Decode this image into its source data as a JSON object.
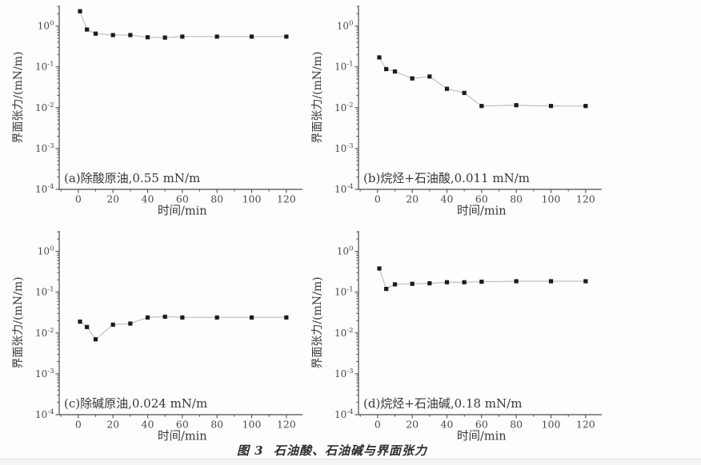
{
  "figure": {
    "caption": "图 3  石油酸、石油碱与界面张力"
  },
  "colors": {
    "marker": "#1b1b1b",
    "line": "#b5b5b5",
    "axis": "#4d4d4d",
    "text": "#383838",
    "tick_text": "#4a4a4a"
  },
  "chart_data": [
    {
      "id": "a",
      "type": "line",
      "label": "(a)除酸原油,0.55 mN/m",
      "xlabel": "时间/min",
      "ylabel": "界面张力/(mN/m)",
      "x": [
        1,
        5,
        10,
        20,
        30,
        40,
        50,
        60,
        80,
        100,
        120
      ],
      "y": [
        2.3,
        0.82,
        0.65,
        0.6,
        0.6,
        0.53,
        0.52,
        0.55,
        0.55,
        0.55,
        0.55
      ],
      "xlim": [
        -11,
        129.3
      ],
      "ylim_log": [
        -4,
        0.5
      ],
      "x_tick_labels": [
        0,
        20,
        40,
        60,
        80,
        100,
        120
      ],
      "y_tick_exponents": [
        0,
        -1,
        -2,
        -3,
        -4
      ],
      "grid": "off",
      "legend": "none"
    },
    {
      "id": "b",
      "type": "line",
      "label": "(b)烷烃+石油酸,0.011 mN/m",
      "xlabel": "时间/min",
      "ylabel": "界面张力/(mN/m)",
      "x": [
        1,
        5,
        10,
        20,
        30,
        40,
        50,
        60,
        80,
        100,
        120
      ],
      "y": [
        0.17,
        0.088,
        0.077,
        0.052,
        0.058,
        0.029,
        0.023,
        0.011,
        0.0115,
        0.011,
        0.011
      ],
      "xlim": [
        -11,
        129.3
      ],
      "ylim_log": [
        -4,
        0.5
      ],
      "x_tick_labels": [
        0,
        20,
        40,
        60,
        80,
        100,
        120
      ],
      "y_tick_exponents": [
        0,
        -1,
        -2,
        -3,
        -4
      ],
      "grid": "off",
      "legend": "none"
    },
    {
      "id": "c",
      "type": "line",
      "label": "(c)除碱原油,0.024 mN/m",
      "xlabel": "时间/min",
      "ylabel": "界面张力/(mN/m)",
      "x": [
        1,
        5,
        10,
        20,
        30,
        40,
        50,
        60,
        80,
        100,
        120
      ],
      "y": [
        0.019,
        0.014,
        0.007,
        0.016,
        0.017,
        0.024,
        0.025,
        0.024,
        0.024,
        0.024,
        0.024
      ],
      "xlim": [
        -11,
        129.3
      ],
      "ylim_log": [
        -4,
        0.5
      ],
      "x_tick_labels": [
        0,
        20,
        40,
        60,
        80,
        100,
        120
      ],
      "y_tick_exponents": [
        0,
        -1,
        -2,
        -3,
        -4
      ],
      "grid": "off",
      "legend": "none"
    },
    {
      "id": "d",
      "type": "line",
      "label": "(d)烷烃+石油碱,0.18 mN/m",
      "xlabel": "时间/min",
      "ylabel": "界面张力/(mN/m)",
      "x": [
        1,
        5,
        10,
        20,
        30,
        40,
        50,
        60,
        80,
        100,
        120
      ],
      "y": [
        0.38,
        0.12,
        0.155,
        0.16,
        0.165,
        0.175,
        0.175,
        0.18,
        0.185,
        0.185,
        0.185
      ],
      "xlim": [
        -11,
        129.3
      ],
      "ylim_log": [
        -4,
        0.5
      ],
      "x_tick_labels": [
        0,
        20,
        40,
        60,
        80,
        100,
        120
      ],
      "y_tick_exponents": [
        0,
        -1,
        -2,
        -3,
        -4
      ],
      "grid": "off",
      "legend": "none"
    }
  ]
}
